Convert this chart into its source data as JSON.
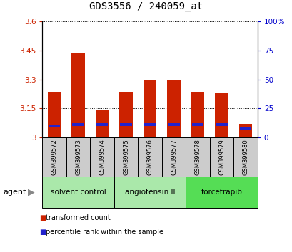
{
  "title": "GDS3556 / 240059_at",
  "samples": [
    "GSM399572",
    "GSM399573",
    "GSM399574",
    "GSM399575",
    "GSM399576",
    "GSM399577",
    "GSM399578",
    "GSM399579",
    "GSM399580"
  ],
  "red_values": [
    3.235,
    3.44,
    3.14,
    3.235,
    3.295,
    3.295,
    3.235,
    3.23,
    3.07
  ],
  "blue_values": [
    0.012,
    0.012,
    0.012,
    0.012,
    0.012,
    0.012,
    0.012,
    0.012,
    0.012
  ],
  "blue_positions": [
    3.05,
    3.06,
    3.06,
    3.06,
    3.06,
    3.06,
    3.06,
    3.06,
    3.04
  ],
  "base": 3.0,
  "ylim_left": [
    3.0,
    3.6
  ],
  "ylim_right": [
    0,
    100
  ],
  "yticks_left": [
    3.0,
    3.15,
    3.3,
    3.45,
    3.6
  ],
  "yticks_right": [
    0,
    25,
    50,
    75,
    100
  ],
  "ytick_labels_left": [
    "3",
    "3.15",
    "3.3",
    "3.45",
    "3.6"
  ],
  "ytick_labels_right": [
    "0",
    "25",
    "50",
    "75",
    "100%"
  ],
  "groups": [
    {
      "label": "solvent control",
      "indices": [
        0,
        1,
        2
      ],
      "color": "#aae8aa"
    },
    {
      "label": "angiotensin II",
      "indices": [
        3,
        4,
        5
      ],
      "color": "#aae8aa"
    },
    {
      "label": "torcetrapib",
      "indices": [
        6,
        7,
        8
      ],
      "color": "#55dd55"
    }
  ],
  "bar_color_red": "#cc2200",
  "bar_color_blue": "#2222cc",
  "bar_width": 0.55,
  "grid_color": "#000000",
  "background_color": "#ffffff",
  "tick_label_color_left": "#cc2200",
  "tick_label_color_right": "#0000cc",
  "sample_box_color": "#cccccc",
  "agent_label": "agent",
  "legend_items": [
    "transformed count",
    "percentile rank within the sample"
  ]
}
